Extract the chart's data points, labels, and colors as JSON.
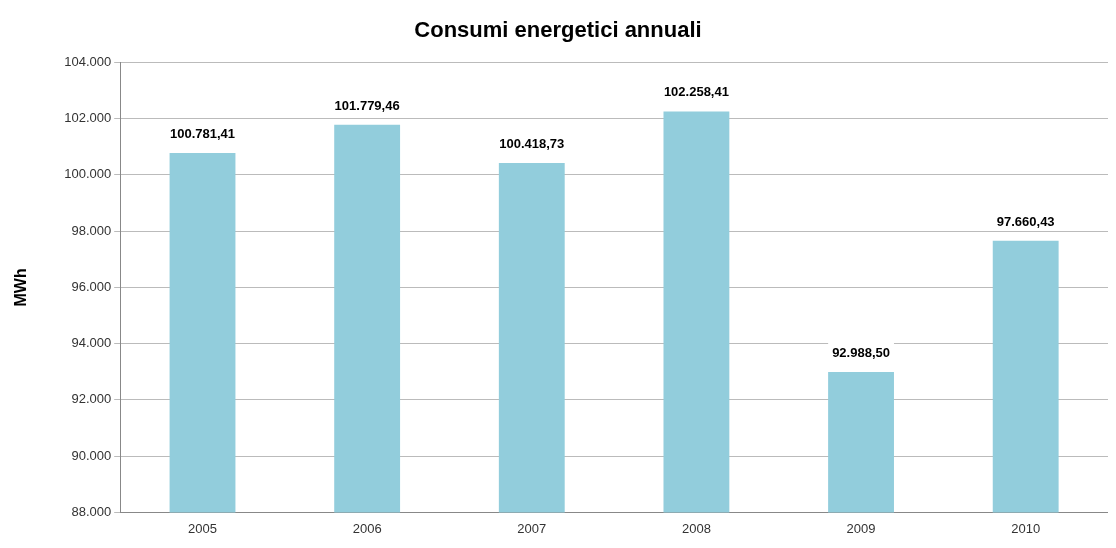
{
  "chart_data": {
    "type": "bar",
    "title": "Consumi energetici annuali",
    "ylabel": "MWh",
    "categories": [
      "2005",
      "2006",
      "2007",
      "2008",
      "2009",
      "2010"
    ],
    "values": [
      100781.41,
      101779.46,
      100418.73,
      102258.41,
      92988.5,
      97660.43
    ],
    "value_labels": [
      "100.781,41",
      "101.779,46",
      "100.418,73",
      "102.258,41",
      "92.988,50",
      "97.660,43"
    ],
    "color": "#92cddc",
    "ylim": [
      88000,
      104000
    ],
    "yticks": [
      {
        "value": 88000,
        "label": "88.000"
      },
      {
        "value": 90000,
        "label": "90.000"
      },
      {
        "value": 92000,
        "label": "92.000"
      },
      {
        "value": 94000,
        "label": "94.000"
      },
      {
        "value": 96000,
        "label": "96.000"
      },
      {
        "value": 98000,
        "label": "98.000"
      },
      {
        "value": 100000,
        "label": "100.000"
      },
      {
        "value": 102000,
        "label": "102.000"
      },
      {
        "value": 104000,
        "label": "104.000"
      }
    ],
    "grid": "y",
    "legend": false
  }
}
